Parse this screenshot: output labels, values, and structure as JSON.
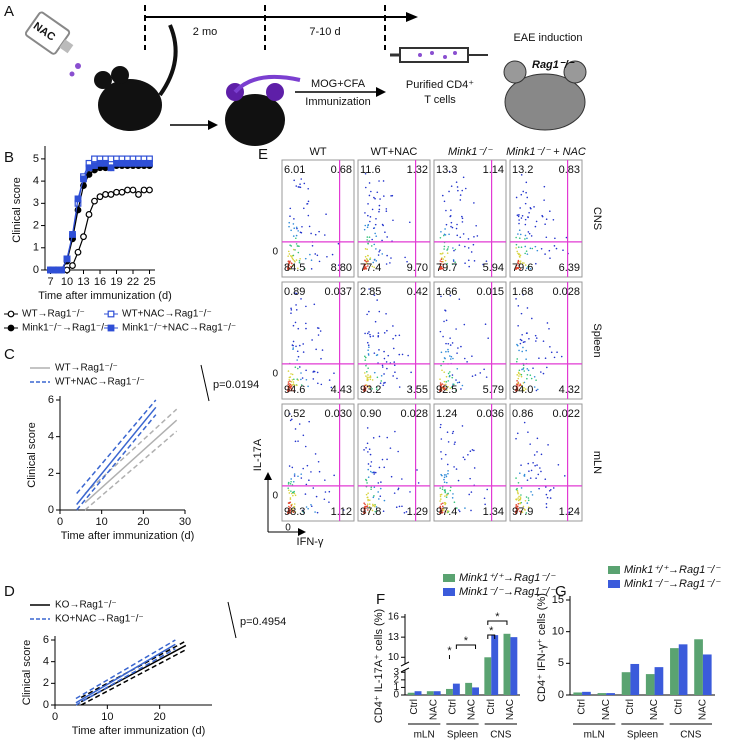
{
  "schematic": {
    "panel": "A",
    "nac": "NAC",
    "timeline": [
      "2 mo",
      "7-10 d"
    ],
    "treatment": [
      "MOG+CFA",
      "Immunization"
    ],
    "cells": [
      "Purified CD4⁺",
      "T cells"
    ],
    "induction": "EAE induction",
    "recipient": "Rag1⁻/⁻"
  },
  "flow": {
    "panel": "E",
    "columns": [
      "WT",
      "WT+NAC",
      "Mink1⁻/⁻",
      "Mink1⁻/⁻ + NAC"
    ],
    "y_label": "IL-17A",
    "x_label": "IFN-γ",
    "zero": "0",
    "rows": [
      {
        "name": "CNS",
        "quadrants": [
          [
            "6.01",
            "0.68",
            "84.5",
            "8.80"
          ],
          [
            "11.6",
            "1.32",
            "77.4",
            "9.70"
          ],
          [
            "13.3",
            "1.14",
            "79.7",
            "5.94"
          ],
          [
            "13.2",
            "0.83",
            "79.6",
            "6.39"
          ]
        ]
      },
      {
        "name": "Spleen",
        "quadrants": [
          [
            "0.89",
            "0.037",
            "94.6",
            "4.43"
          ],
          [
            "2.85",
            "0.42",
            "93.2",
            "3.55"
          ],
          [
            "1.66",
            "0.015",
            "92.5",
            "5.79"
          ],
          [
            "1.68",
            "0.028",
            "94.0",
            "4.32"
          ]
        ]
      },
      {
        "name": "mLN",
        "quadrants": [
          [
            "0.52",
            "0.030",
            "98.3",
            "1.12"
          ],
          [
            "0.90",
            "0.028",
            "97.8",
            "1.29"
          ],
          [
            "1.24",
            "0.036",
            "97.4",
            "1.34"
          ],
          [
            "0.86",
            "0.022",
            "97.9",
            "1.24"
          ]
        ]
      }
    ]
  },
  "chart_data": [
    {
      "panel": "B",
      "type": "line",
      "y_label": "Clinical score",
      "x_label": "Time after immunization (d)",
      "x": [
        7,
        8,
        9,
        10,
        11,
        12,
        13,
        14,
        15,
        16,
        17,
        18,
        19,
        20,
        21,
        22,
        23,
        24,
        25
      ],
      "xlim": [
        6,
        26
      ],
      "xticks": [
        7,
        10,
        13,
        16,
        19,
        22,
        25
      ],
      "ylim": [
        0,
        5.4
      ],
      "yticks": [
        0,
        1,
        2,
        3,
        4,
        5
      ],
      "series": [
        {
          "name": "WT→Rag1⁻/⁻",
          "color": "#000000",
          "marker": "open-circle",
          "values": [
            0,
            0,
            0,
            0,
            0.2,
            0.8,
            1.5,
            2.5,
            3.1,
            3.3,
            3.4,
            3.4,
            3.5,
            3.5,
            3.6,
            3.6,
            3.4,
            3.6,
            3.6
          ]
        },
        {
          "name": "WT+NAC→Rag1⁻/⁻",
          "color": "#2f4fd6",
          "marker": "open-square",
          "values": [
            0,
            0,
            0,
            0.5,
            1.5,
            3.0,
            4.2,
            4.8,
            5,
            5,
            5,
            5,
            5,
            5,
            5,
            5,
            5,
            5,
            5
          ]
        },
        {
          "name": "Mink1⁻/⁻→Rag1⁻/⁻",
          "color": "#000000",
          "marker": "filled-circle",
          "values": [
            0,
            0,
            0,
            0.4,
            1.4,
            2.7,
            3.8,
            4.3,
            4.5,
            4.6,
            4.6,
            4.6,
            4.7,
            4.7,
            4.7,
            4.7,
            4.7,
            4.7,
            4.7
          ]
        },
        {
          "name": "Mink1⁻/⁻+NAC→Rag1⁻/⁻",
          "color": "#2f4fd6",
          "marker": "filled-square",
          "values": [
            0,
            0,
            0,
            0.5,
            1.6,
            3.2,
            4.1,
            4.6,
            4.7,
            4.8,
            4.8,
            4.6,
            4.8,
            4.8,
            4.8,
            4.8,
            4.8,
            4.8,
            4.8
          ]
        }
      ]
    },
    {
      "panel": "C",
      "type": "regression",
      "y_label": "Clinical score",
      "x_label": "Time after immunization (d)",
      "annotation": "p=0.0194",
      "xlim": [
        0,
        30
      ],
      "xticks": [
        0,
        10,
        20,
        30
      ],
      "ylim": [
        0,
        6
      ],
      "yticks": [
        0,
        2,
        4,
        6
      ],
      "series": [
        {
          "name": "WT→Rag1⁻/⁻",
          "color": "#b0b0b0",
          "x": [
            6,
            28
          ],
          "values": [
            0.4,
            4.9
          ],
          "ci_upper": [
            0.9,
            5.5
          ],
          "ci_lower": [
            0.0,
            4.3
          ]
        },
        {
          "name": "WT+NAC→Rag1⁻/⁻",
          "color": "#3a66d0",
          "x": [
            4,
            23
          ],
          "values": [
            0.3,
            5.6
          ],
          "ci_upper": [
            0.9,
            6.0
          ],
          "ci_lower": [
            0.0,
            5.2
          ]
        }
      ]
    },
    {
      "panel": "D",
      "type": "regression",
      "y_label": "Clinical score",
      "x_label": "Time after immunization (d)",
      "annotation": "p=0.4954",
      "xlim": [
        0,
        30
      ],
      "xticks": [
        0,
        10,
        20
      ],
      "ylim": [
        0,
        6
      ],
      "yticks": [
        0,
        2,
        4,
        6
      ],
      "series": [
        {
          "name": "KO→Rag1⁻/⁻",
          "color": "#000000",
          "x": [
            5,
            25
          ],
          "values": [
            0.3,
            5.5
          ],
          "ci_upper": [
            0.7,
            5.9
          ],
          "ci_lower": [
            0.0,
            5.1
          ]
        },
        {
          "name": "KO+NAC→Rag1⁻/⁻",
          "color": "#3a66d0",
          "x": [
            4,
            23
          ],
          "values": [
            0.2,
            5.6
          ],
          "ci_upper": [
            0.6,
            6.0
          ],
          "ci_lower": [
            0.0,
            5.2
          ]
        }
      ]
    },
    {
      "panel": "F",
      "type": "bar",
      "y_label": "CD4⁺ IL-17A⁺ cells (%)",
      "groups": [
        "mLN",
        "Spleen",
        "CNS"
      ],
      "categories": [
        "Ctrl",
        "NAC",
        "Ctrl",
        "NAC",
        "Ctrl",
        "NAC"
      ],
      "ylim": [
        0,
        16
      ],
      "ybreak": [
        3.3,
        9
      ],
      "yticks": [
        0,
        1,
        2,
        3,
        10,
        13,
        16
      ],
      "annotations": [
        "*",
        "*",
        "*",
        "*"
      ],
      "series": [
        {
          "name": "Mink1⁺/⁺→Rag1⁻/⁻",
          "color": "#5aa371",
          "values": [
            0.3,
            0.5,
            0.8,
            1.6,
            10,
            13.5
          ]
        },
        {
          "name": "Mink1⁻/⁻→Rag1⁻/⁻",
          "color": "#3b5bdb",
          "values": [
            0.5,
            0.5,
            1.5,
            1.0,
            13.3,
            13.0
          ]
        }
      ]
    },
    {
      "panel": "G",
      "type": "bar",
      "y_label": "CD4⁺ IFN-γ⁺ cells (%)",
      "groups": [
        "mLN",
        "Spleen",
        "CNS"
      ],
      "categories": [
        "Ctrl",
        "NAC",
        "Ctrl",
        "NAC",
        "Ctrl",
        "NAC"
      ],
      "ylim": [
        0,
        15
      ],
      "yticks": [
        0,
        5,
        10,
        15
      ],
      "series": [
        {
          "name": "Mink1⁺/⁺→Rag1⁻/⁻",
          "color": "#5aa371",
          "values": [
            0.4,
            0.3,
            3.6,
            3.3,
            7.4,
            8.8
          ]
        },
        {
          "name": "Mink1⁻/⁻→Rag1⁻/⁻",
          "color": "#3b5bdb",
          "values": [
            0.5,
            0.3,
            4.9,
            4.4,
            8.0,
            6.4
          ]
        }
      ]
    }
  ]
}
